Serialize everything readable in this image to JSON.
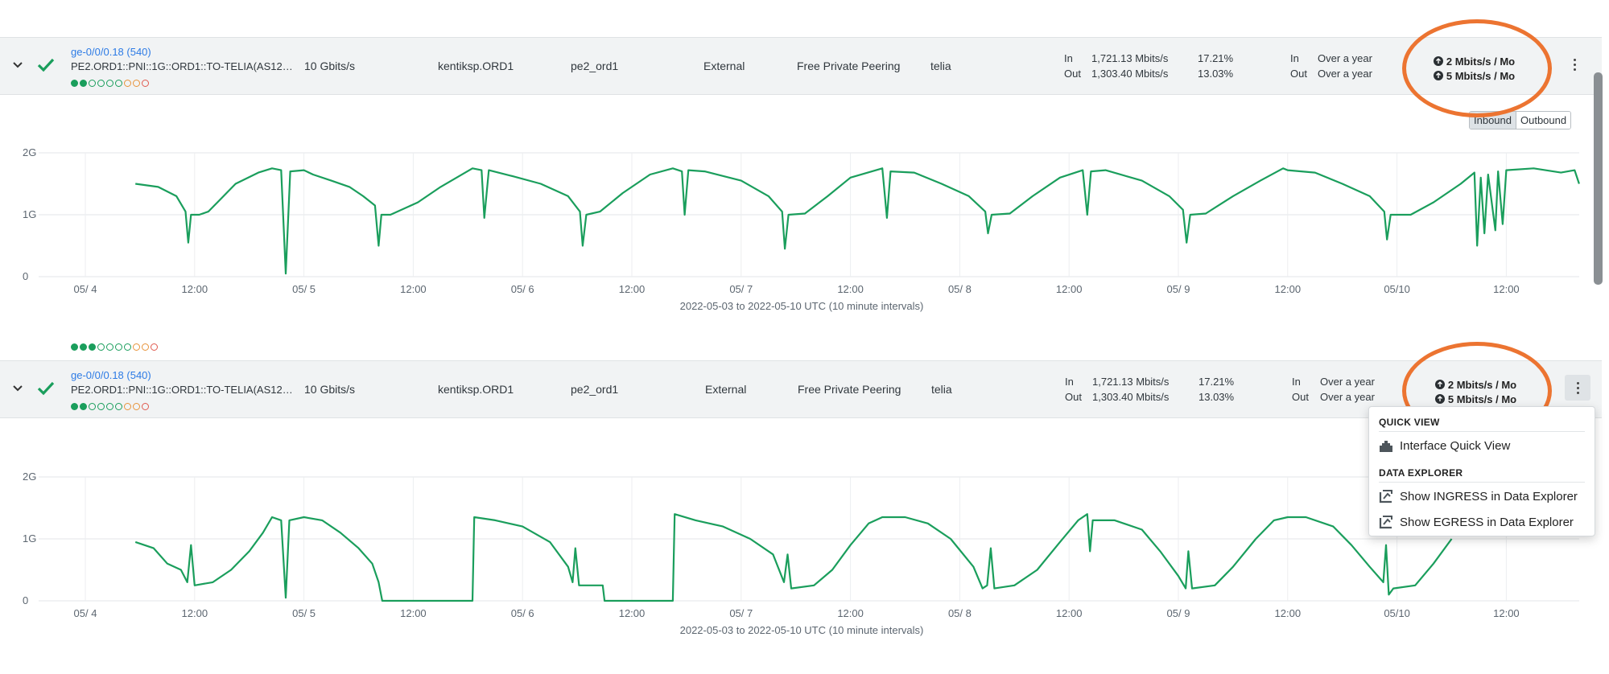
{
  "rows": [
    {
      "iface_link": "ge-0/0/0.18 (540)",
      "iface_desc": "PE2.ORD1::PNI::1G::ORD1::TO-TELIA(AS12…",
      "capacity": "10 Gbits/s",
      "site": "kentiksp.ORD1",
      "device": "pe2_ord1",
      "connectivity": "External",
      "network_boundary": "Free Private Peering",
      "provider": "telia",
      "in_label": "In",
      "out_label": "Out",
      "in_traffic": "1,721.13 Mbits/s",
      "out_traffic": "1,303.40 Mbits/s",
      "in_util": "17.21%",
      "out_util": "13.03%",
      "in_time": "Over a year",
      "out_time": "Over a year",
      "trend_up": "2 Mbits/s / Mo",
      "trend_down": "5 Mbits/s / Mo"
    },
    {
      "iface_link": "ge-0/0/0.18 (540)",
      "iface_desc": "PE2.ORD1::PNI::1G::ORD1::TO-TELIA(AS12…",
      "capacity": "10 Gbits/s",
      "site": "kentiksp.ORD1",
      "device": "pe2_ord1",
      "connectivity": "External",
      "network_boundary": "Free Private Peering",
      "provider": "telia",
      "in_label": "In",
      "out_label": "Out",
      "in_traffic": "1,721.13 Mbits/s",
      "out_traffic": "1,303.40 Mbits/s",
      "in_util": "17.21%",
      "out_util": "13.03%",
      "in_time": "Over a year",
      "out_time": "Over a year",
      "trend_up": "2 Mbits/s / Mo",
      "trend_down": "5 Mbits/s / Mo"
    }
  ],
  "toggle": {
    "inbound": "Inbound",
    "outbound": "Outbound",
    "selected": "Inbound"
  },
  "menu": {
    "quick_view_header": "QUICK VIEW",
    "interface_quick_view": "Interface Quick View",
    "data_explorer_header": "DATA EXPLORER",
    "show_ingress": "Show INGRESS in Data Explorer",
    "show_egress": "Show EGRESS in Data Explorer"
  },
  "colors": {
    "series": "#1a9e5c",
    "annotation": "#ec7431",
    "link": "#2d7be5"
  },
  "chart_data": [
    {
      "type": "line",
      "title": "",
      "caption": "2022-05-03 to 2022-05-10 UTC (10 minute intervals)",
      "yticks": [
        "0",
        "1G",
        "2G"
      ],
      "ylim": [
        0,
        2
      ],
      "xticks": [
        "05/ 4",
        "12:00",
        "05/ 5",
        "12:00",
        "05/ 6",
        "12:00",
        "05/ 7",
        "12:00",
        "05/ 8",
        "12:00",
        "05/ 9",
        "12:00",
        "05/10",
        "12:00"
      ],
      "x_unit": "hours since 05/3 12:00",
      "series": [
        {
          "color": "#1a9e5c",
          "points": [
            [
              -6.5,
              1.5
            ],
            [
              -4,
              1.45
            ],
            [
              -2,
              1.3
            ],
            [
              -1,
              1.05
            ],
            [
              -0.7,
              0.55
            ],
            [
              -0.4,
              1.0
            ],
            [
              0.5,
              1.0
            ],
            [
              1.5,
              1.05
            ],
            [
              2.5,
              1.2
            ],
            [
              4.5,
              1.5
            ],
            [
              7,
              1.68
            ],
            [
              8.5,
              1.75
            ],
            [
              9.5,
              1.72
            ],
            [
              10,
              0.05
            ],
            [
              10.5,
              1.7
            ],
            [
              12,
              1.72
            ],
            [
              13,
              1.65
            ],
            [
              15,
              1.55
            ],
            [
              17,
              1.45
            ],
            [
              18.5,
              1.3
            ],
            [
              19.8,
              1.15
            ],
            [
              20.2,
              0.5
            ],
            [
              20.5,
              1.0
            ],
            [
              21.5,
              1.0
            ],
            [
              24.5,
              1.2
            ],
            [
              27,
              1.45
            ],
            [
              30.5,
              1.75
            ],
            [
              31.5,
              1.72
            ],
            [
              31.8,
              0.95
            ],
            [
              32.3,
              1.72
            ],
            [
              35,
              1.62
            ],
            [
              38,
              1.5
            ],
            [
              41,
              1.3
            ],
            [
              42.3,
              1.05
            ],
            [
              42.6,
              0.5
            ],
            [
              43,
              1.0
            ],
            [
              44.5,
              1.05
            ],
            [
              47,
              1.35
            ],
            [
              50,
              1.65
            ],
            [
              52.5,
              1.75
            ],
            [
              53.5,
              1.7
            ],
            [
              53.8,
              1.0
            ],
            [
              54.2,
              1.72
            ],
            [
              56,
              1.7
            ],
            [
              60,
              1.55
            ],
            [
              63,
              1.3
            ],
            [
              64.5,
              1.05
            ],
            [
              64.8,
              0.45
            ],
            [
              65.2,
              1.0
            ],
            [
              67,
              1.02
            ],
            [
              69.5,
              1.3
            ],
            [
              72,
              1.6
            ],
            [
              75.5,
              1.75
            ],
            [
              76,
              0.95
            ],
            [
              76.4,
              1.7
            ],
            [
              79,
              1.68
            ],
            [
              82,
              1.5
            ],
            [
              85,
              1.3
            ],
            [
              86.8,
              1.05
            ],
            [
              87.1,
              0.7
            ],
            [
              87.5,
              1.0
            ],
            [
              89.5,
              1.02
            ],
            [
              92,
              1.3
            ],
            [
              95,
              1.6
            ],
            [
              97.5,
              1.72
            ],
            [
              98,
              1.0
            ],
            [
              98.4,
              1.7
            ],
            [
              100,
              1.72
            ],
            [
              104,
              1.55
            ],
            [
              107,
              1.3
            ],
            [
              108.5,
              1.08
            ],
            [
              108.9,
              0.55
            ],
            [
              109.3,
              1.0
            ],
            [
              111,
              1.02
            ],
            [
              114,
              1.3
            ],
            [
              117,
              1.55
            ],
            [
              119.5,
              1.75
            ],
            [
              120,
              1.72
            ],
            [
              123,
              1.68
            ],
            [
              126,
              1.5
            ],
            [
              129,
              1.3
            ],
            [
              130.6,
              1.05
            ],
            [
              130.9,
              0.6
            ],
            [
              131.3,
              1.0
            ],
            [
              133.5,
              1.0
            ],
            [
              136,
              1.2
            ],
            [
              139,
              1.5
            ],
            [
              140.5,
              1.68
            ],
            [
              140.8,
              0.5
            ],
            [
              141.2,
              1.6
            ],
            [
              141.6,
              0.7
            ],
            [
              142,
              1.65
            ],
            [
              142.8,
              0.75
            ],
            [
              143.1,
              1.7
            ],
            [
              143.6,
              0.85
            ],
            [
              144,
              1.72
            ],
            [
              147,
              1.75
            ],
            [
              150,
              1.68
            ],
            [
              151.5,
              1.72
            ],
            [
              152,
              1.5
            ]
          ]
        }
      ]
    },
    {
      "type": "line",
      "title": "",
      "caption": "2022-05-03 to 2022-05-10 UTC (10 minute intervals)",
      "yticks": [
        "0",
        "1G",
        "2G"
      ],
      "ylim": [
        0,
        2
      ],
      "xticks": [
        "05/ 4",
        "12:00",
        "05/ 5",
        "12:00",
        "05/ 6",
        "12:00",
        "05/ 7",
        "12:00",
        "05/ 8",
        "12:00",
        "05/ 9",
        "12:00",
        "05/10",
        "12:00"
      ],
      "x_unit": "hours since 05/3 12:00",
      "series": [
        {
          "color": "#1a9e5c",
          "points": [
            [
              -6.5,
              0.95
            ],
            [
              -4.5,
              0.85
            ],
            [
              -3,
              0.6
            ],
            [
              -1.5,
              0.5
            ],
            [
              -0.8,
              0.3
            ],
            [
              -0.4,
              0.9
            ],
            [
              0,
              0.25
            ],
            [
              2,
              0.3
            ],
            [
              4,
              0.5
            ],
            [
              6,
              0.8
            ],
            [
              7.5,
              1.1
            ],
            [
              8.5,
              1.35
            ],
            [
              9.5,
              1.3
            ],
            [
              10,
              0.05
            ],
            [
              10.4,
              1.3
            ],
            [
              12,
              1.35
            ],
            [
              14,
              1.3
            ],
            [
              16,
              1.1
            ],
            [
              18,
              0.85
            ],
            [
              19.5,
              0.6
            ],
            [
              20.2,
              0.3
            ],
            [
              20.6,
              0.0
            ],
            [
              30.5,
              0.0
            ],
            [
              30.7,
              1.35
            ],
            [
              33,
              1.3
            ],
            [
              36,
              1.2
            ],
            [
              39,
              0.95
            ],
            [
              41,
              0.55
            ],
            [
              41.5,
              0.3
            ],
            [
              41.8,
              0.85
            ],
            [
              42.2,
              0.25
            ],
            [
              44,
              0.25
            ],
            [
              44.8,
              0.25
            ],
            [
              45,
              0.0
            ],
            [
              52.5,
              0.0
            ],
            [
              52.7,
              1.4
            ],
            [
              55,
              1.3
            ],
            [
              58,
              1.2
            ],
            [
              61,
              1.0
            ],
            [
              63.5,
              0.75
            ],
            [
              64.7,
              0.3
            ],
            [
              65.1,
              0.75
            ],
            [
              65.5,
              0.2
            ],
            [
              68,
              0.25
            ],
            [
              70,
              0.5
            ],
            [
              72,
              0.9
            ],
            [
              74,
              1.25
            ],
            [
              75.5,
              1.35
            ],
            [
              78,
              1.35
            ],
            [
              80.5,
              1.25
            ],
            [
              83,
              1.0
            ],
            [
              85.5,
              0.55
            ],
            [
              86.5,
              0.2
            ],
            [
              87,
              0.25
            ],
            [
              87.4,
              0.85
            ],
            [
              87.8,
              0.2
            ],
            [
              90,
              0.25
            ],
            [
              92.5,
              0.5
            ],
            [
              95,
              0.95
            ],
            [
              97,
              1.3
            ],
            [
              98,
              1.4
            ],
            [
              98.3,
              0.8
            ],
            [
              98.6,
              1.3
            ],
            [
              101,
              1.3
            ],
            [
              104,
              1.15
            ],
            [
              106,
              0.8
            ],
            [
              108,
              0.4
            ],
            [
              108.8,
              0.2
            ],
            [
              109.1,
              0.8
            ],
            [
              109.5,
              0.2
            ],
            [
              112,
              0.25
            ],
            [
              114,
              0.55
            ],
            [
              116.5,
              1.0
            ],
            [
              118.5,
              1.3
            ],
            [
              120,
              1.35
            ],
            [
              122,
              1.35
            ],
            [
              125,
              1.2
            ],
            [
              127,
              0.9
            ],
            [
              129,
              0.55
            ],
            [
              130.5,
              0.3
            ],
            [
              130.8,
              0.9
            ],
            [
              131.1,
              0.1
            ],
            [
              131.6,
              0.2
            ],
            [
              134,
              0.25
            ],
            [
              136,
              0.6
            ],
            [
              138,
              1.0
            ]
          ]
        }
      ]
    }
  ]
}
